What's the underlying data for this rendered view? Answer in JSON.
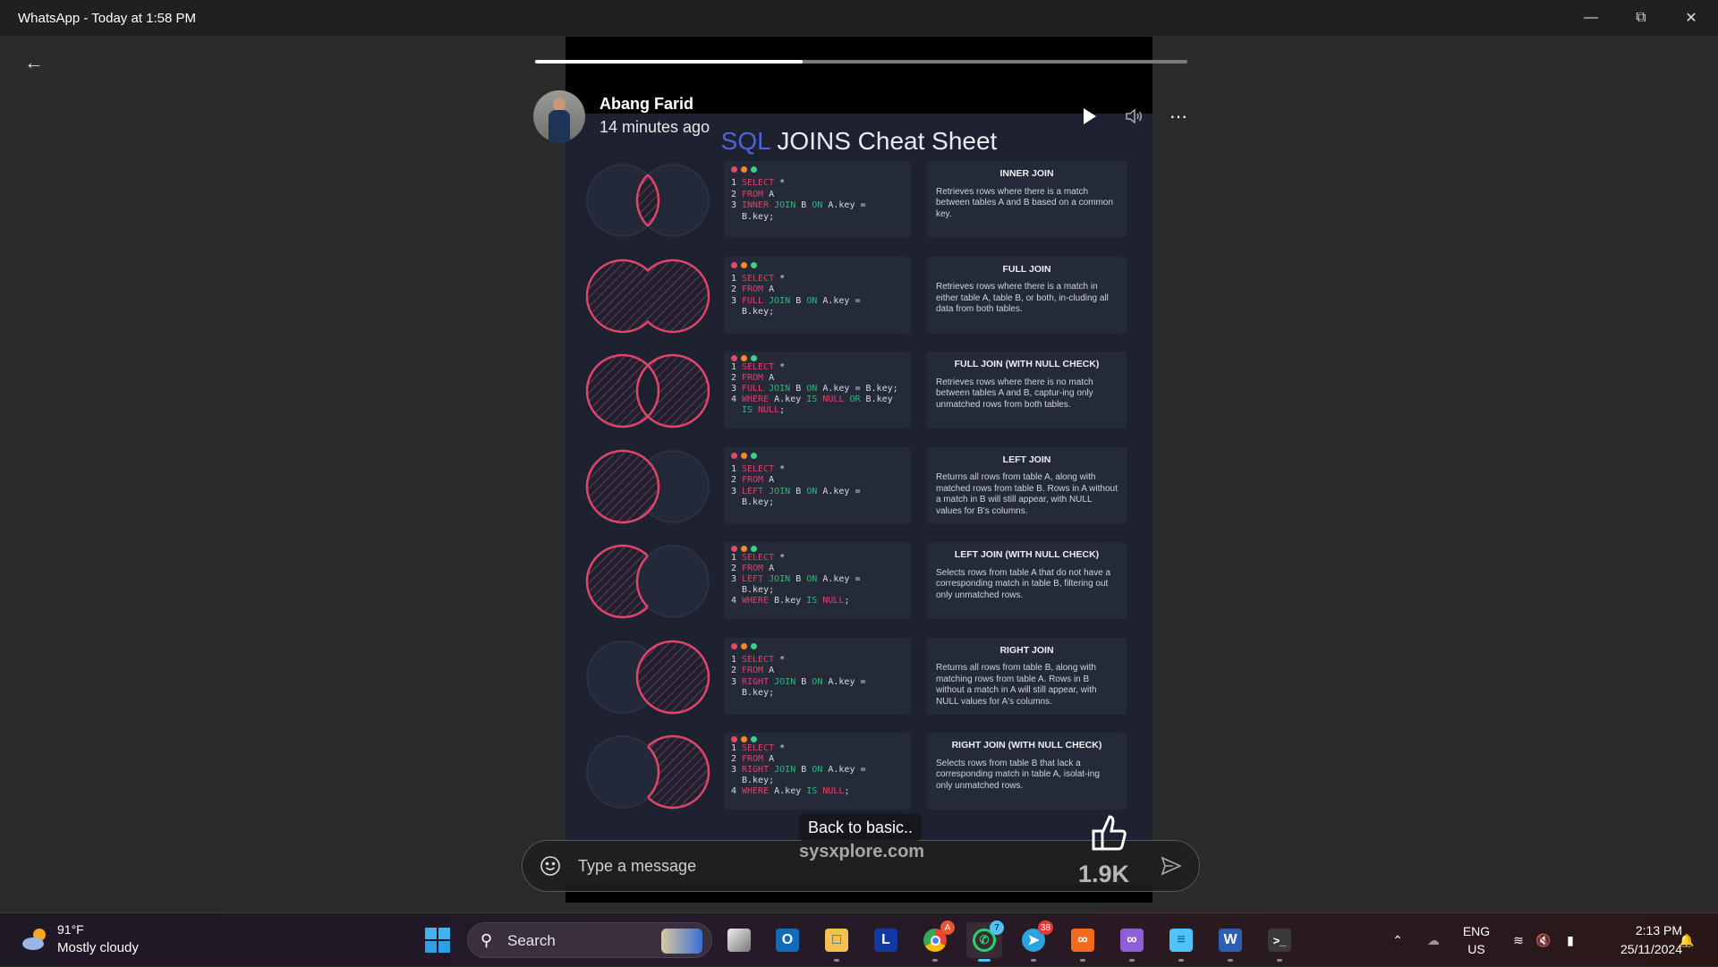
{
  "window": {
    "title": "WhatsApp - Today at 1:58 PM"
  },
  "status": {
    "progress_fraction": 0.41,
    "author": "Abang Farid",
    "time_ago": "14 minutes ago",
    "caption": "Back to basic..",
    "likes": "1.9K"
  },
  "sheet": {
    "title_accent": "SQL",
    "title_rest": " JOINS Cheat Sheet",
    "watermark": "sysxplore.com",
    "accent_color": "#e0456b",
    "keyword_color": "#d8436a",
    "join_color": "#36b27e",
    "rows": [
      {
        "venn": "inner",
        "heading": "INNER JOIN",
        "text": "Retrieves rows where there is a match between tables A and B based on a common key.",
        "code": [
          [
            "1",
            [
              [
                "SELECT",
                "k"
              ],
              [
                " *",
                "t"
              ]
            ]
          ],
          [
            "2",
            [
              [
                "FROM",
                "k"
              ],
              [
                " A",
                "t"
              ]
            ]
          ],
          [
            "3",
            [
              [
                "INNER",
                "k"
              ],
              [
                " ",
                "t"
              ],
              [
                "JOIN",
                "g"
              ],
              [
                " B ",
                "t"
              ],
              [
                "ON",
                "g"
              ],
              [
                " A.key =",
                "t"
              ]
            ]
          ],
          [
            "",
            [
              [
                "B.key;",
                "t"
              ]
            ]
          ]
        ]
      },
      {
        "venn": "full",
        "heading": "FULL JOIN",
        "text": "Retrieves rows where there is a match in either table A, table B, or both, in-cluding all data from both tables.",
        "code": [
          [
            "1",
            [
              [
                "SELECT",
                "k"
              ],
              [
                " *",
                "t"
              ]
            ]
          ],
          [
            "2",
            [
              [
                "FROM",
                "k"
              ],
              [
                " A",
                "t"
              ]
            ]
          ],
          [
            "3",
            [
              [
                "FULL",
                "k"
              ],
              [
                " ",
                "t"
              ],
              [
                "JOIN",
                "g"
              ],
              [
                " B ",
                "t"
              ],
              [
                "ON",
                "g"
              ],
              [
                " A.key =",
                "t"
              ]
            ]
          ],
          [
            "",
            [
              [
                "B.key;",
                "t"
              ]
            ]
          ]
        ]
      },
      {
        "venn": "full-null",
        "heading": "FULL JOIN (WITH NULL CHECK)",
        "text": "Retrieves rows where there is no match between tables A and B, captur-ing only unmatched rows from both tables.",
        "code": [
          [
            "1",
            [
              [
                "SELECT",
                "k"
              ],
              [
                " *",
                "t"
              ]
            ]
          ],
          [
            "2",
            [
              [
                "FROM",
                "k"
              ],
              [
                " A",
                "t"
              ]
            ]
          ],
          [
            "3",
            [
              [
                "FULL",
                "k"
              ],
              [
                " ",
                "t"
              ],
              [
                "JOIN",
                "g"
              ],
              [
                " B ",
                "t"
              ],
              [
                "ON",
                "g"
              ],
              [
                " A.key = B.key;",
                "t"
              ]
            ]
          ],
          [
            "4",
            [
              [
                "WHERE",
                "k"
              ],
              [
                " A.key ",
                "t"
              ],
              [
                "IS",
                "g"
              ],
              [
                " ",
                "t"
              ],
              [
                "NULL",
                "k"
              ],
              [
                " ",
                "t"
              ],
              [
                "OR",
                "g"
              ],
              [
                " B.key",
                "t"
              ]
            ]
          ],
          [
            "",
            [
              [
                "IS",
                "g"
              ],
              [
                " ",
                "t"
              ],
              [
                "NULL",
                "k"
              ],
              [
                ";",
                "t"
              ]
            ]
          ]
        ]
      },
      {
        "venn": "left",
        "heading": "LEFT JOIN",
        "text": "Returns all rows from table A, along with matched rows from table B. Rows in A without a match in B will still appear, with NULL values for B's columns.",
        "code": [
          [
            "1",
            [
              [
                "SELECT",
                "k"
              ],
              [
                " *",
                "t"
              ]
            ]
          ],
          [
            "2",
            [
              [
                "FROM",
                "k"
              ],
              [
                " A",
                "t"
              ]
            ]
          ],
          [
            "3",
            [
              [
                "LEFT",
                "k"
              ],
              [
                " ",
                "t"
              ],
              [
                "JOIN",
                "g"
              ],
              [
                " B ",
                "t"
              ],
              [
                "ON",
                "g"
              ],
              [
                " A.key =",
                "t"
              ]
            ]
          ],
          [
            "",
            [
              [
                "B.key;",
                "t"
              ]
            ]
          ]
        ]
      },
      {
        "venn": "left-null",
        "heading": "LEFT JOIN (WITH NULL CHECK)",
        "text": "Selects rows from table A that do not have a corresponding match in table B, filtering out only unmatched rows.",
        "code": [
          [
            "1",
            [
              [
                "SELECT",
                "k"
              ],
              [
                " *",
                "t"
              ]
            ]
          ],
          [
            "2",
            [
              [
                "FROM",
                "k"
              ],
              [
                " A",
                "t"
              ]
            ]
          ],
          [
            "3",
            [
              [
                "LEFT",
                "k"
              ],
              [
                " ",
                "t"
              ],
              [
                "JOIN",
                "g"
              ],
              [
                " B ",
                "t"
              ],
              [
                "ON",
                "g"
              ],
              [
                " A.key =",
                "t"
              ]
            ]
          ],
          [
            "",
            [
              [
                "B.key;",
                "t"
              ]
            ]
          ],
          [
            "4",
            [
              [
                "WHERE",
                "k"
              ],
              [
                " B.key ",
                "t"
              ],
              [
                "IS",
                "g"
              ],
              [
                " ",
                "t"
              ],
              [
                "NULL",
                "k"
              ],
              [
                ";",
                "t"
              ]
            ]
          ]
        ]
      },
      {
        "venn": "right",
        "heading": "RIGHT JOIN",
        "text": "Returns all rows from table B, along with matching rows from table A. Rows in B without a match in A will still appear, with NULL values for A's columns.",
        "code": [
          [
            "1",
            [
              [
                "SELECT",
                "k"
              ],
              [
                " *",
                "t"
              ]
            ]
          ],
          [
            "2",
            [
              [
                "FROM",
                "k"
              ],
              [
                " A",
                "t"
              ]
            ]
          ],
          [
            "3",
            [
              [
                "RIGHT",
                "k"
              ],
              [
                " ",
                "t"
              ],
              [
                "JOIN",
                "g"
              ],
              [
                " B ",
                "t"
              ],
              [
                "ON",
                "g"
              ],
              [
                " A.key =",
                "t"
              ]
            ]
          ],
          [
            "",
            [
              [
                "B.key;",
                "t"
              ]
            ]
          ]
        ]
      },
      {
        "venn": "right-null",
        "heading": "RIGHT JOIN (WITH NULL CHECK)",
        "text": "Selects rows from table B that lack a corresponding match in table A, isolat-ing only unmatched rows.",
        "code": [
          [
            "1",
            [
              [
                "SELECT",
                "k"
              ],
              [
                " *",
                "t"
              ]
            ]
          ],
          [
            "2",
            [
              [
                "FROM",
                "k"
              ],
              [
                " A",
                "t"
              ]
            ]
          ],
          [
            "3",
            [
              [
                "RIGHT",
                "k"
              ],
              [
                " ",
                "t"
              ],
              [
                "JOIN",
                "g"
              ],
              [
                " B ",
                "t"
              ],
              [
                "ON",
                "g"
              ],
              [
                " A.key =",
                "t"
              ]
            ]
          ],
          [
            "",
            [
              [
                "B.key;",
                "t"
              ]
            ]
          ],
          [
            "4",
            [
              [
                "WHERE",
                "k"
              ],
              [
                " A.key ",
                "t"
              ],
              [
                "IS",
                "g"
              ],
              [
                " ",
                "t"
              ],
              [
                "NULL",
                "k"
              ],
              [
                ";",
                "t"
              ]
            ]
          ]
        ]
      }
    ]
  },
  "composer": {
    "placeholder": "Type a message"
  },
  "taskbar": {
    "weather_temp": "91°F",
    "weather_desc": "Mostly cloudy",
    "search_label": "Search",
    "chrome_badge": "A",
    "whatsapp_badge": "7",
    "telegram_badge": "38",
    "lang": "ENG",
    "region": "US",
    "time": "2:13 PM",
    "date": "25/11/2024"
  }
}
